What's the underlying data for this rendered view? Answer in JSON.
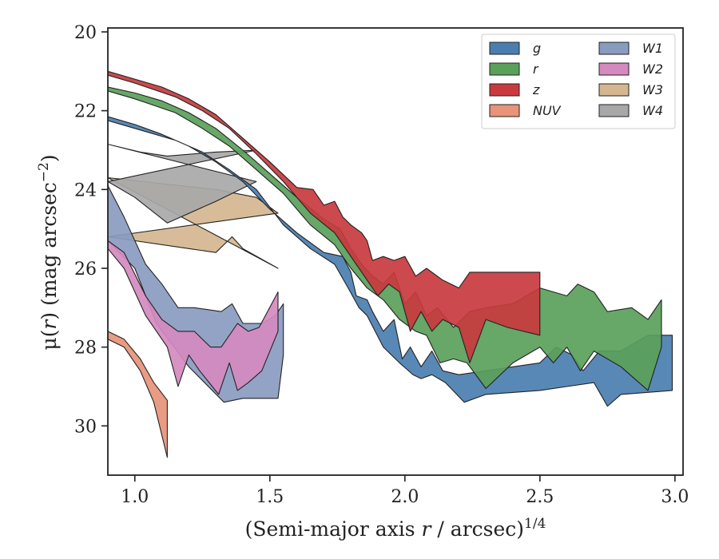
{
  "chart_data": {
    "type": "area",
    "xlabel_prefix": "(Semi-major axis ",
    "xlabel_var": "r",
    "xlabel_mid": " / arcsec)",
    "xlabel_sup": "1/4",
    "ylabel_prefix": "μ(",
    "ylabel_var": "r",
    "ylabel_mid": ") (mag arcsec",
    "ylabel_sup": "−2",
    "ylabel_suffix": ")",
    "xlim": [
      0.9,
      3.03
    ],
    "ylim": [
      31.25,
      19.9
    ],
    "xticks": [
      1.0,
      1.5,
      2.0,
      2.5,
      3.0
    ],
    "xtick_labels": [
      "1.0",
      "1.5",
      "2.0",
      "2.5",
      "3.0"
    ],
    "yticks": [
      20,
      22,
      24,
      26,
      28,
      30
    ],
    "ytick_labels": [
      "20",
      "22",
      "24",
      "26",
      "28",
      "30"
    ],
    "legend_position": "upper-right",
    "legend_columns": 2,
    "series": [
      {
        "name": "W3",
        "color": "#d5b690",
        "upper": [
          [
            0.9,
            23.7
          ],
          [
            1.3,
            24.0
          ],
          [
            1.45,
            24.2
          ],
          [
            1.53,
            24.6
          ]
        ],
        "lower": [
          [
            0.9,
            25.2
          ],
          [
            1.2,
            25.5
          ],
          [
            1.3,
            25.6
          ],
          [
            1.36,
            25.2
          ],
          [
            1.4,
            25.5
          ],
          [
            1.53,
            26.0
          ]
        ]
      },
      {
        "name": "W4",
        "color": "#a8a8a8",
        "upper": [
          [
            0.9,
            22.85
          ],
          [
            1.02,
            23.05
          ],
          [
            1.12,
            23.15
          ],
          [
            1.3,
            23.05
          ],
          [
            1.45,
            23.0
          ]
        ],
        "lower": [
          [
            0.9,
            23.8
          ],
          [
            1.0,
            24.2
          ],
          [
            1.12,
            24.85
          ],
          [
            1.3,
            24.3
          ],
          [
            1.45,
            23.8
          ]
        ]
      },
      {
        "name": "W1",
        "color": "#8a9bc0",
        "upper": [
          [
            0.9,
            23.9
          ],
          [
            0.96,
            24.7
          ],
          [
            1.04,
            25.9
          ],
          [
            1.1,
            26.4
          ],
          [
            1.16,
            27.0
          ],
          [
            1.22,
            27.0
          ],
          [
            1.32,
            27.1
          ],
          [
            1.36,
            26.9
          ],
          [
            1.4,
            27.4
          ],
          [
            1.47,
            27.4
          ],
          [
            1.52,
            27.2
          ],
          [
            1.55,
            26.9
          ]
        ],
        "lower": [
          [
            1.55,
            28.2
          ],
          [
            1.53,
            29.3
          ],
          [
            1.4,
            29.3
          ],
          [
            1.33,
            29.4
          ],
          [
            1.2,
            28.5
          ],
          [
            1.08,
            27.4
          ],
          [
            1.0,
            26.0
          ],
          [
            0.9,
            25.3
          ]
        ]
      },
      {
        "name": "W2",
        "color": "#d48abf",
        "upper": [
          [
            0.9,
            25.3
          ],
          [
            0.96,
            25.6
          ],
          [
            1.04,
            26.7
          ],
          [
            1.1,
            27.3
          ],
          [
            1.16,
            27.6
          ],
          [
            1.22,
            27.6
          ],
          [
            1.28,
            28.0
          ],
          [
            1.32,
            28.0
          ],
          [
            1.38,
            27.4
          ],
          [
            1.42,
            27.6
          ],
          [
            1.46,
            27.5
          ],
          [
            1.53,
            26.6
          ]
        ],
        "lower": [
          [
            1.53,
            27.6
          ],
          [
            1.47,
            28.6
          ],
          [
            1.42,
            28.9
          ],
          [
            1.38,
            29.1
          ],
          [
            1.35,
            28.4
          ],
          [
            1.31,
            29.2
          ],
          [
            1.24,
            28.6
          ],
          [
            1.2,
            28.2
          ],
          [
            1.16,
            29.0
          ],
          [
            1.12,
            28.0
          ],
          [
            1.04,
            27.2
          ],
          [
            0.96,
            26.0
          ],
          [
            0.9,
            25.5
          ]
        ]
      },
      {
        "name": "NUV",
        "color": "#e8937a",
        "upper": [
          [
            0.9,
            27.6
          ],
          [
            0.96,
            27.8
          ],
          [
            1.02,
            28.3
          ],
          [
            1.07,
            28.9
          ],
          [
            1.12,
            29.35
          ]
        ],
        "lower": [
          [
            1.12,
            30.8
          ],
          [
            1.07,
            29.4
          ],
          [
            1.02,
            28.6
          ],
          [
            0.96,
            28.0
          ],
          [
            0.9,
            27.8
          ]
        ]
      },
      {
        "name": "g",
        "color": "#4a7eb0",
        "upper": [
          [
            0.9,
            22.15
          ],
          [
            1.0,
            22.35
          ],
          [
            1.1,
            22.6
          ],
          [
            1.2,
            22.9
          ],
          [
            1.3,
            23.3
          ],
          [
            1.4,
            23.8
          ],
          [
            1.5,
            24.5
          ],
          [
            1.6,
            25.1
          ],
          [
            1.7,
            25.6
          ],
          [
            1.77,
            25.7
          ],
          [
            1.8,
            26.1
          ],
          [
            1.82,
            26.7
          ],
          [
            1.86,
            26.8
          ],
          [
            1.88,
            27.1
          ],
          [
            1.92,
            27.6
          ],
          [
            1.96,
            27.3
          ],
          [
            1.99,
            28.3
          ],
          [
            2.02,
            28.0
          ],
          [
            2.06,
            28.5
          ],
          [
            2.1,
            28.1
          ],
          [
            2.14,
            28.6
          ],
          [
            2.2,
            28.7
          ],
          [
            2.3,
            28.6
          ],
          [
            2.4,
            28.5
          ],
          [
            2.5,
            28.4
          ],
          [
            2.56,
            28.0
          ],
          [
            2.62,
            28.2
          ],
          [
            2.66,
            28.6
          ],
          [
            2.72,
            28.1
          ],
          [
            2.8,
            28.1
          ],
          [
            2.9,
            27.7
          ],
          [
            2.99,
            27.7
          ]
        ],
        "lower": [
          [
            2.99,
            29.1
          ],
          [
            2.8,
            29.2
          ],
          [
            2.75,
            29.5
          ],
          [
            2.7,
            28.9
          ],
          [
            2.6,
            29.0
          ],
          [
            2.5,
            29.1
          ],
          [
            2.3,
            29.2
          ],
          [
            2.22,
            29.4
          ],
          [
            2.15,
            28.9
          ],
          [
            2.1,
            28.7
          ],
          [
            2.06,
            28.8
          ],
          [
            2.03,
            28.7
          ],
          [
            1.98,
            28.4
          ],
          [
            1.92,
            28.0
          ],
          [
            1.86,
            27.2
          ],
          [
            1.83,
            27.0
          ],
          [
            1.79,
            26.5
          ],
          [
            1.74,
            25.9
          ],
          [
            1.65,
            25.5
          ],
          [
            1.55,
            24.9
          ],
          [
            1.45,
            24.0
          ],
          [
            1.35,
            23.5
          ],
          [
            1.25,
            23.05
          ],
          [
            1.15,
            22.75
          ],
          [
            1.0,
            22.45
          ],
          [
            0.9,
            22.25
          ]
        ]
      },
      {
        "name": "r",
        "color": "#5aa05a",
        "upper": [
          [
            0.9,
            21.4
          ],
          [
            1.0,
            21.55
          ],
          [
            1.1,
            21.75
          ],
          [
            1.2,
            22.05
          ],
          [
            1.3,
            22.45
          ],
          [
            1.4,
            23.0
          ],
          [
            1.5,
            23.6
          ],
          [
            1.6,
            24.2
          ],
          [
            1.7,
            24.75
          ],
          [
            1.76,
            25.0
          ],
          [
            1.8,
            25.5
          ],
          [
            1.84,
            25.9
          ],
          [
            1.88,
            26.2
          ],
          [
            1.92,
            26.4
          ],
          [
            1.96,
            26.1
          ],
          [
            2.0,
            26.9
          ],
          [
            2.04,
            26.6
          ],
          [
            2.08,
            27.2
          ],
          [
            2.12,
            27.0
          ],
          [
            2.18,
            27.5
          ],
          [
            2.24,
            27.1
          ],
          [
            2.3,
            27.0
          ],
          [
            2.4,
            26.9
          ],
          [
            2.5,
            26.5
          ],
          [
            2.6,
            26.7
          ],
          [
            2.64,
            26.4
          ],
          [
            2.7,
            26.6
          ],
          [
            2.75,
            27.1
          ],
          [
            2.84,
            27.0
          ],
          [
            2.9,
            27.3
          ],
          [
            2.95,
            26.8
          ]
        ],
        "lower": [
          [
            2.95,
            28.0
          ],
          [
            2.9,
            29.1
          ],
          [
            2.8,
            28.5
          ],
          [
            2.7,
            28.1
          ],
          [
            2.65,
            28.6
          ],
          [
            2.6,
            28.0
          ],
          [
            2.55,
            28.4
          ],
          [
            2.5,
            28.0
          ],
          [
            2.4,
            28.4
          ],
          [
            2.3,
            29.05
          ],
          [
            2.23,
            28.4
          ],
          [
            2.18,
            28.3
          ],
          [
            2.13,
            28.4
          ],
          [
            2.08,
            27.7
          ],
          [
            2.04,
            27.6
          ],
          [
            1.98,
            27.3
          ],
          [
            1.92,
            26.8
          ],
          [
            1.86,
            26.5
          ],
          [
            1.8,
            26.0
          ],
          [
            1.74,
            25.4
          ],
          [
            1.65,
            24.9
          ],
          [
            1.55,
            24.1
          ],
          [
            1.45,
            23.5
          ],
          [
            1.35,
            22.9
          ],
          [
            1.25,
            22.45
          ],
          [
            1.15,
            22.05
          ],
          [
            1.0,
            21.7
          ],
          [
            0.9,
            21.5
          ]
        ]
      },
      {
        "name": "z",
        "color": "#c83a3e",
        "upper": [
          [
            0.9,
            21.0
          ],
          [
            1.0,
            21.2
          ],
          [
            1.1,
            21.4
          ],
          [
            1.2,
            21.7
          ],
          [
            1.3,
            22.1
          ],
          [
            1.4,
            22.7
          ],
          [
            1.5,
            23.3
          ],
          [
            1.6,
            23.95
          ],
          [
            1.66,
            24.0
          ],
          [
            1.7,
            24.4
          ],
          [
            1.74,
            24.3
          ],
          [
            1.77,
            24.7
          ],
          [
            1.8,
            24.9
          ],
          [
            1.84,
            25.1
          ],
          [
            1.86,
            25.3
          ],
          [
            1.88,
            25.8
          ],
          [
            1.92,
            25.7
          ],
          [
            1.96,
            25.8
          ],
          [
            2.0,
            25.7
          ],
          [
            2.04,
            26.2
          ],
          [
            2.08,
            26.0
          ],
          [
            2.14,
            26.3
          ],
          [
            2.2,
            26.5
          ],
          [
            2.24,
            26.1
          ],
          [
            2.5,
            26.1
          ]
        ],
        "lower": [
          [
            2.5,
            27.7
          ],
          [
            2.38,
            27.5
          ],
          [
            2.3,
            27.3
          ],
          [
            2.24,
            28.4
          ],
          [
            2.2,
            27.5
          ],
          [
            2.14,
            27.3
          ],
          [
            2.1,
            27.6
          ],
          [
            2.06,
            27.1
          ],
          [
            2.02,
            27.6
          ],
          [
            1.98,
            26.6
          ],
          [
            1.94,
            26.4
          ],
          [
            1.9,
            26.7
          ],
          [
            1.85,
            26.2
          ],
          [
            1.8,
            25.7
          ],
          [
            1.74,
            25.1
          ],
          [
            1.65,
            24.6
          ],
          [
            1.55,
            23.8
          ],
          [
            1.45,
            23.1
          ],
          [
            1.35,
            22.45
          ],
          [
            1.25,
            22.0
          ],
          [
            1.15,
            21.65
          ],
          [
            1.0,
            21.3
          ],
          [
            0.9,
            21.1
          ]
        ]
      }
    ],
    "legend_order": [
      "g",
      "r",
      "z",
      "NUV",
      "W1",
      "W2",
      "W3",
      "W4"
    ]
  }
}
